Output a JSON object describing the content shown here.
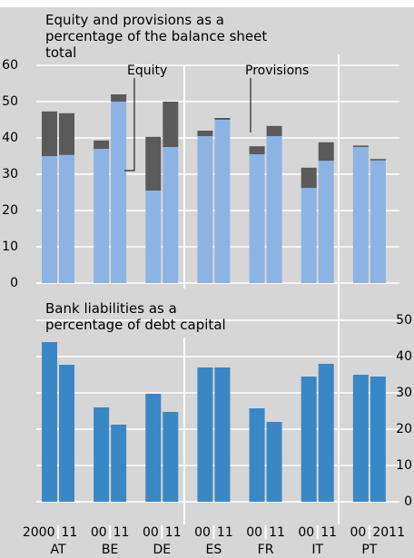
{
  "chart_data": [
    {
      "type": "bar",
      "stacked": true,
      "title": "Equity and provisions as a percentage of the balance sheet total",
      "series": [
        {
          "name": "Equity",
          "color": "#8db3e2",
          "values": [
            35,
            35.3,
            37,
            50,
            25.5,
            37.5,
            40.5,
            45,
            35.5,
            40.5,
            26.2,
            33.7,
            37.5,
            33.8
          ]
        },
        {
          "name": "Provisions",
          "color": "#5a5a5a",
          "values": [
            12.3,
            11.5,
            2.3,
            2,
            14.8,
            12.5,
            1.5,
            0.5,
            2.2,
            2.8,
            5.6,
            5.1,
            0.4,
            0.4
          ]
        }
      ],
      "ylim": [
        0,
        60
      ],
      "yticks": [
        0,
        10,
        20,
        30,
        40,
        50,
        60
      ],
      "grid": true
    },
    {
      "type": "bar",
      "title": "Bank liabilities as a percentage of debt capital",
      "categories": [
        "2000",
        "11",
        "00",
        "11",
        "00",
        "11",
        "00",
        "11",
        "00",
        "11",
        "00",
        "11",
        "00",
        "2011"
      ],
      "groups": [
        "AT",
        "BE",
        "DE",
        "ES",
        "FR",
        "IT",
        "PT"
      ],
      "series": [
        {
          "name": "Bank liabilities",
          "color": "#3a87c6",
          "values": [
            44,
            37.75,
            26,
            21.25,
            29.75,
            24.75,
            37,
            37,
            25.75,
            22,
            34.5,
            38,
            35,
            34.5
          ]
        }
      ],
      "ylim": [
        0,
        50
      ],
      "yticks": [
        0,
        10,
        20,
        30,
        40,
        50
      ],
      "grid": true,
      "y_axis_side": "right"
    }
  ]
}
